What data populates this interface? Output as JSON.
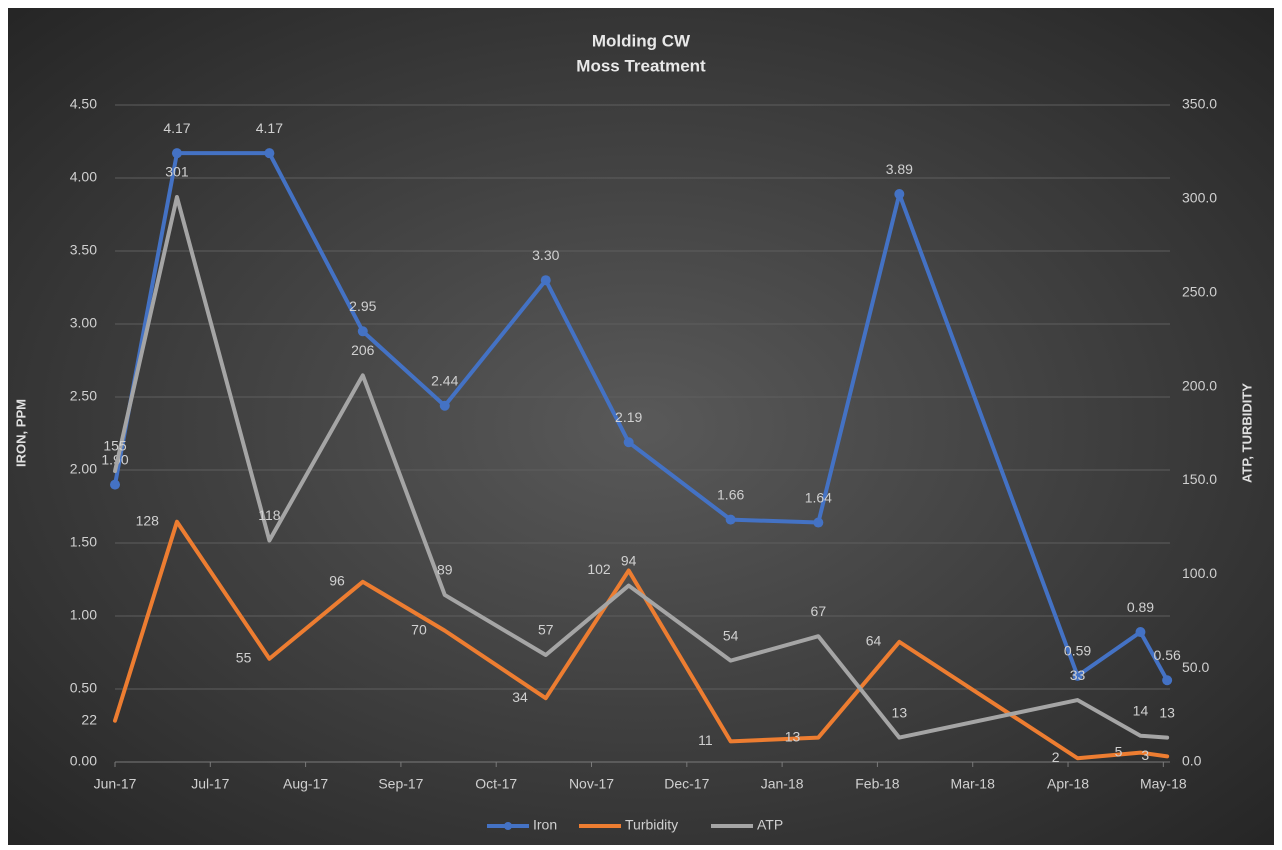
{
  "chart_data": {
    "type": "line",
    "title": "Molding CW",
    "subtitle": "Moss Treatment",
    "ylabel": "IRON, PPM",
    "y2label": "ATP, TURBIDITY",
    "x": [
      0,
      0.65,
      1.62,
      2.6,
      3.46,
      4.52,
      5.39,
      6.46,
      7.38,
      8.23,
      10.1,
      10.76,
      11.04
    ],
    "xlim": [
      0,
      11.07
    ],
    "xticks": [
      {
        "value": 0,
        "label": "Jun-17"
      },
      {
        "value": 1,
        "label": "Jul-17"
      },
      {
        "value": 2,
        "label": "Aug-17"
      },
      {
        "value": 3,
        "label": "Sep-17"
      },
      {
        "value": 4,
        "label": "Oct-17"
      },
      {
        "value": 5,
        "label": "Nov-17"
      },
      {
        "value": 6,
        "label": "Dec-17"
      },
      {
        "value": 7,
        "label": "Jan-18"
      },
      {
        "value": 8,
        "label": "Feb-18"
      },
      {
        "value": 9,
        "label": "Mar-18"
      },
      {
        "value": 10,
        "label": "Apr-18"
      },
      {
        "value": 11,
        "label": "May-18"
      }
    ],
    "ylim": [
      0,
      4.5
    ],
    "yticks": [
      {
        "value": 0,
        "label": "0.00"
      },
      {
        "value": 0.5,
        "label": "0.50"
      },
      {
        "value": 1,
        "label": "1.00"
      },
      {
        "value": 1.5,
        "label": "1.50"
      },
      {
        "value": 2,
        "label": "2.00"
      },
      {
        "value": 2.5,
        "label": "2.50"
      },
      {
        "value": 3,
        "label": "3.00"
      },
      {
        "value": 3.5,
        "label": "3.50"
      },
      {
        "value": 4,
        "label": "4.00"
      },
      {
        "value": 4.5,
        "label": "4.50"
      }
    ],
    "y2lim": [
      0,
      350
    ],
    "y2ticks": [
      {
        "value": 0,
        "label": "0.0"
      },
      {
        "value": 50,
        "label": "50.0"
      },
      {
        "value": 100,
        "label": "100.0"
      },
      {
        "value": 150,
        "label": "150.0"
      },
      {
        "value": 200,
        "label": "200.0"
      },
      {
        "value": 250,
        "label": "250.0"
      },
      {
        "value": 300,
        "label": "300.0"
      },
      {
        "value": 350,
        "label": "350.0"
      }
    ],
    "grid": true,
    "legend": "bottom",
    "series": [
      {
        "name": "Iron",
        "color": "#4472c4",
        "markers": true,
        "values": [
          1.9,
          4.17,
          4.17,
          2.95,
          2.44,
          3.3,
          2.19,
          1.66,
          1.64,
          3.89,
          0.59,
          0.89,
          0.56
        ],
        "value_labels": [
          "1.90",
          "4.17",
          "4.17",
          "2.95",
          "2.44",
          "3.30",
          "2.19",
          "1.66",
          "1.64",
          "3.89",
          "0.59",
          "0.89",
          "0.56"
        ]
      },
      {
        "name": "Turbidity",
        "color": "#ed7d31",
        "axis": "y2",
        "label_side": "left",
        "values": [
          22,
          128,
          55,
          96,
          70,
          34,
          102,
          11,
          13,
          64,
          2,
          5,
          3
        ]
      },
      {
        "name": "ATP",
        "color": "#a5a5a5",
        "axis": "y2",
        "values": [
          155,
          301,
          118,
          206,
          89,
          57,
          94,
          54,
          67,
          13,
          33,
          14,
          13
        ]
      }
    ]
  }
}
